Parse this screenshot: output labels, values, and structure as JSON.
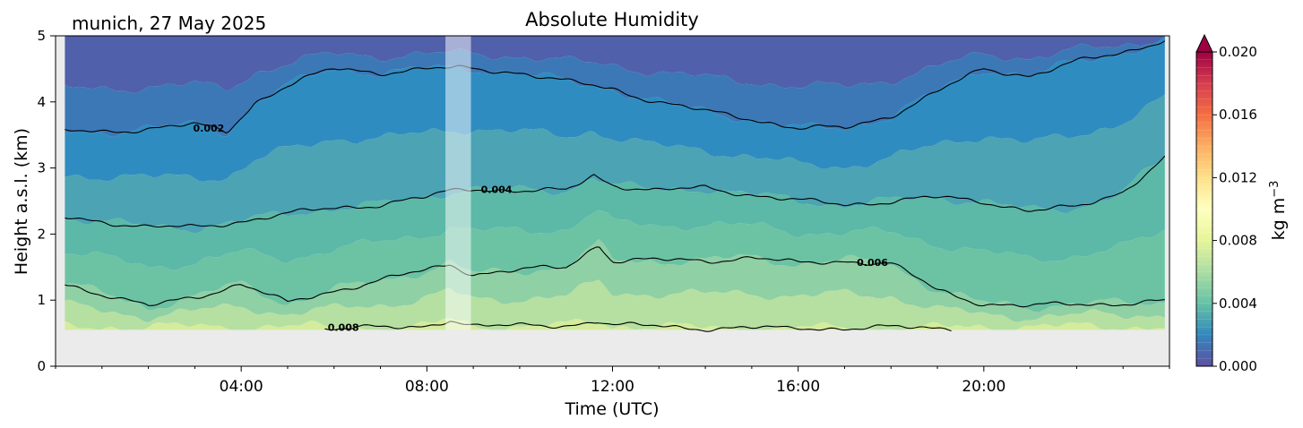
{
  "chart_data": {
    "type": "heatmap",
    "title": "Absolute Humidity",
    "subtitle": "munich, 27 May 2025",
    "xlabel": "Time (UTC)",
    "ylabel": "Height a.s.l. (km)",
    "xlim_hours": [
      0,
      24
    ],
    "ylim": [
      0,
      5
    ],
    "x_ticks": [
      {
        "hour": 4,
        "label": "04:00"
      },
      {
        "hour": 8,
        "label": "08:00"
      },
      {
        "hour": 12,
        "label": "12:00"
      },
      {
        "hour": 16,
        "label": "16:00"
      },
      {
        "hour": 20,
        "label": "20:00"
      }
    ],
    "y_ticks": [
      "0",
      "1",
      "2",
      "3",
      "4",
      "5"
    ],
    "data_start_hour": 0.2,
    "data_end_hour": 23.9,
    "ground_height_km": 0.55,
    "missing_data_band_hours": [
      8.4,
      8.95
    ],
    "colorbar": {
      "label": "kg m",
      "label_superscript": "−3",
      "min": 0.0,
      "max": 0.02,
      "extend": "max",
      "colormap": "Spectral_r",
      "tick_labels": [
        "0.000",
        "0.004",
        "0.008",
        "0.012",
        "0.016",
        "0.020"
      ],
      "colors": [
        "#5e4fa2",
        "#3288bd",
        "#66c2a5",
        "#abdda4",
        "#e6f598",
        "#ffffbf",
        "#fee08b",
        "#fdae61",
        "#f46d43",
        "#d53e4f",
        "#9e0142"
      ]
    },
    "contour_lines": [
      {
        "level_label": "0.002",
        "hours": [
          0.2,
          1,
          2,
          3,
          3.7,
          4.3,
          5,
          6,
          7,
          8,
          9,
          10,
          11,
          12,
          13,
          14,
          15,
          16,
          17,
          18,
          19,
          20,
          21,
          22,
          23,
          23.9
        ],
        "height_km": [
          3.55,
          3.55,
          3.6,
          3.65,
          3.55,
          4.0,
          4.25,
          4.5,
          4.45,
          4.5,
          4.5,
          4.45,
          4.3,
          4.2,
          4.0,
          3.85,
          3.75,
          3.6,
          3.6,
          3.8,
          4.15,
          4.5,
          4.4,
          4.6,
          4.75,
          4.95
        ]
      },
      {
        "level_label": "0.004",
        "hours": [
          0.2,
          1,
          2,
          3,
          4,
          5,
          6,
          7,
          8,
          8.5,
          9,
          10,
          11,
          11.6,
          12,
          13,
          14,
          15,
          16,
          17,
          18,
          19,
          20,
          21,
          22,
          23,
          23.9
        ],
        "height_km": [
          2.25,
          2.2,
          2.1,
          2.1,
          2.2,
          2.3,
          2.4,
          2.45,
          2.55,
          2.65,
          2.7,
          2.65,
          2.65,
          2.9,
          2.75,
          2.65,
          2.7,
          2.6,
          2.5,
          2.45,
          2.5,
          2.55,
          2.5,
          2.35,
          2.4,
          2.65,
          3.15
        ]
      },
      {
        "level_label": "0.006",
        "hours": [
          0.2,
          1,
          2,
          3,
          4,
          5,
          6,
          7,
          8,
          8.5,
          9,
          10,
          11,
          11.7,
          12,
          13,
          14,
          15,
          16,
          17,
          18,
          19,
          20,
          21,
          22,
          23,
          23.9
        ],
        "height_km": [
          1.25,
          1.1,
          0.9,
          1.05,
          1.25,
          0.95,
          1.15,
          1.3,
          1.45,
          1.55,
          1.4,
          1.45,
          1.5,
          1.85,
          1.6,
          1.6,
          1.6,
          1.65,
          1.55,
          1.6,
          1.55,
          1.15,
          0.95,
          0.9,
          0.95,
          0.95,
          0.97
        ]
      },
      {
        "level_label": "0.008",
        "hours": [
          5.8,
          6.5,
          7.0,
          7.5,
          8.0,
          8.5,
          9.0,
          10,
          11,
          11.7,
          12,
          13,
          14,
          15,
          15.7,
          16,
          17,
          18,
          19,
          19.3
        ],
        "height_km": [
          0.58,
          0.6,
          0.57,
          0.57,
          0.6,
          0.72,
          0.62,
          0.6,
          0.62,
          0.7,
          0.62,
          0.6,
          0.58,
          0.58,
          0.56,
          0.58,
          0.58,
          0.58,
          0.58,
          0.58
        ]
      }
    ],
    "contour_label_positions": [
      {
        "label": "0.002",
        "hour": 3.3
      },
      {
        "label": "0.004",
        "hour": 9.5
      },
      {
        "label": "0.006",
        "hour": 17.6
      },
      {
        "label": "0.008",
        "hour": 6.2
      }
    ]
  }
}
